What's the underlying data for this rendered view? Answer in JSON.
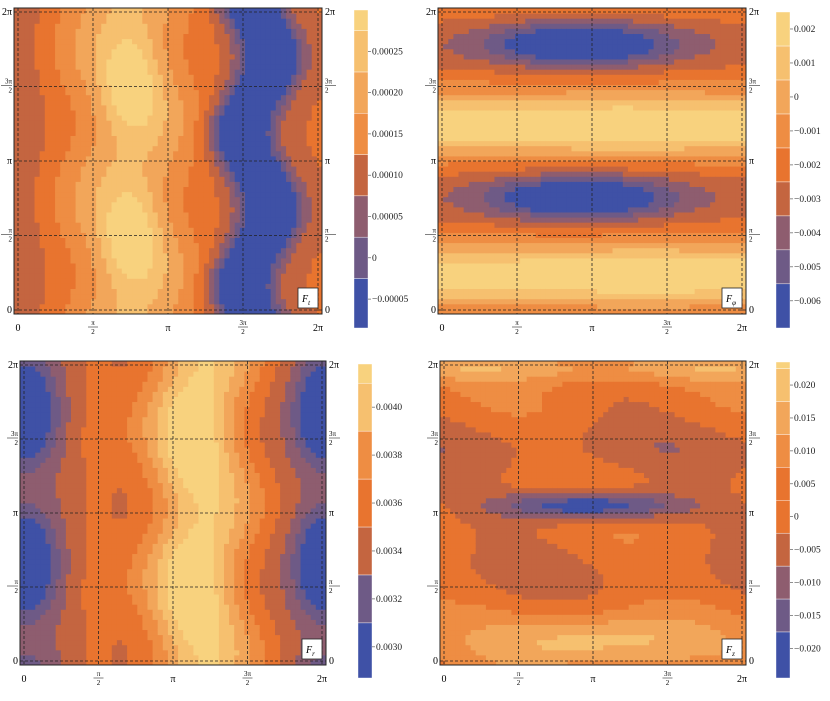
{
  "palette": [
    "#3f51a6",
    "#6e5a86",
    "#8e5d6f",
    "#c46540",
    "#e8742f",
    "#ee8d43",
    "#f2a65a",
    "#f6c06f",
    "#f8d27e"
  ],
  "chart_data": [
    {
      "type": "heatmap",
      "panel_label": "F",
      "panel_label_sub": "t",
      "x_ticks": [
        "0",
        "π/2",
        "π",
        "3π/2",
        "2π"
      ],
      "y_ticks": [
        "0",
        "π/2",
        "π",
        "3π/2",
        "2π"
      ],
      "xlim": [
        0,
        6.2832
      ],
      "ylim": [
        0,
        6.2832
      ],
      "colorbar": {
        "ticks": [
          "0.00025",
          "0.00020",
          "0.00015",
          "0.00010",
          "0.00005",
          "0",
          "−0.00005"
        ],
        "values": [
          0.00025,
          0.0002,
          0.00015,
          0.0001,
          5e-05,
          0,
          -5e-05
        ],
        "min": -8.5e-05,
        "max": 0.0003
      },
      "field": {
        "kind": "vertical",
        "minValue": -7.5e-05,
        "maxValue": 0.00029,
        "center_x": 2.4,
        "hotspots_y": [
          1.6,
          4.7
        ]
      }
    },
    {
      "type": "heatmap",
      "panel_label": "F",
      "panel_label_sub": "φ",
      "x_ticks": [
        "0",
        "π/2",
        "π",
        "3π/2",
        "2π"
      ],
      "y_ticks": [
        "0",
        "π/2",
        "π",
        "3π/2",
        "2π"
      ],
      "xlim": [
        0,
        6.2832
      ],
      "ylim": [
        0,
        6.2832
      ],
      "colorbar": {
        "ticks": [
          "0.002",
          "0.001",
          "0",
          "−0.001",
          "−0.002",
          "−0.003",
          "−0.004",
          "−0.005",
          "−0.006"
        ],
        "values": [
          0.002,
          0.001,
          0,
          -0.001,
          -0.002,
          -0.003,
          -0.004,
          -0.005,
          -0.006
        ],
        "min": -0.0068,
        "max": 0.0025
      },
      "field": {
        "kind": "horizontal-a",
        "minValue": -0.0064,
        "maxValue": 0.0022,
        "cold_y": [
          2.4,
          5.6
        ],
        "warm_y": [
          0.8,
          3.9
        ]
      }
    },
    {
      "type": "heatmap",
      "panel_label": "F",
      "panel_label_sub": "r",
      "x_ticks": [
        "0",
        "π/2",
        "π",
        "3π/2",
        "2π"
      ],
      "y_ticks": [
        "0",
        "π/2",
        "π",
        "3π/2",
        "2π"
      ],
      "xlim": [
        0,
        6.2832
      ],
      "ylim": [
        0,
        6.2832
      ],
      "colorbar": {
        "ticks": [
          "0.0040",
          "0.0038",
          "0.0036",
          "0.0034",
          "0.0032",
          "0.0030"
        ],
        "values": [
          0.004,
          0.0038,
          0.0036,
          0.0034,
          0.0032,
          0.003
        ],
        "min": 0.00287,
        "max": 0.00418
      },
      "field": {
        "kind": "vertical-r",
        "minValue": 0.0029,
        "maxValue": 0.00412
      }
    },
    {
      "type": "heatmap",
      "panel_label": "F",
      "panel_label_sub": "z",
      "x_ticks": [
        "0",
        "π/2",
        "π",
        "3π/2",
        "2π"
      ],
      "y_ticks": [
        "0",
        "π/2",
        "π",
        "3π/2",
        "2π"
      ],
      "xlim": [
        0,
        6.2832
      ],
      "ylim": [
        0,
        6.2832
      ],
      "colorbar": {
        "ticks": [
          "0.020",
          "0.015",
          "0.010",
          "0.005",
          "0",
          "−0.005",
          "−0.010",
          "−0.015",
          "−0.020"
        ],
        "values": [
          0.02,
          0.015,
          0.01,
          0.005,
          0,
          -0.005,
          -0.01,
          -0.015,
          -0.02
        ],
        "min": -0.0245,
        "max": 0.0235
      },
      "field": {
        "kind": "horizontal-z",
        "minValue": -0.022,
        "maxValue": 0.022
      }
    }
  ]
}
